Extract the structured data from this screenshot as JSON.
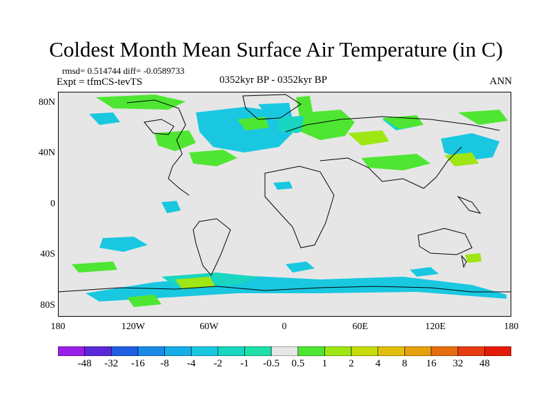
{
  "title": "Coldest Month Mean Surface Air Temperature (in C)",
  "stats": {
    "rmsd_line": "rmsd= 0.514744  diff= -0.0589733",
    "expt_line": "Expt = tfmCS-tevTS",
    "period": "0352kyr BP - 0352kyr BP",
    "season": "ANN"
  },
  "axes": {
    "y_ticks": [
      "80N",
      "40N",
      "0",
      "40S",
      "80S"
    ],
    "x_ticks": [
      "180",
      "120W",
      "60W",
      "0",
      "60E",
      "120E",
      "180"
    ]
  },
  "colorbar": {
    "labels": [
      "-48",
      "-32",
      "-16",
      "-8",
      "-4",
      "-2",
      "-1",
      "-0.5",
      "0.5",
      "1",
      "2",
      "4",
      "8",
      "16",
      "32",
      "48"
    ],
    "colors": [
      "#9a1fe6",
      "#5a28d8",
      "#1f5fe0",
      "#1a8ae6",
      "#17aee8",
      "#19c8e0",
      "#18d6c0",
      "#1ee0a8",
      "#e6e6e6",
      "#4ee632",
      "#9ee614",
      "#c8dc0a",
      "#e0c00a",
      "#e6a00c",
      "#e66e10",
      "#e63c12",
      "#e61a0a"
    ]
  },
  "map_colors": {
    "ocean_background": "#e6e6e6",
    "coastline": "#000000"
  }
}
